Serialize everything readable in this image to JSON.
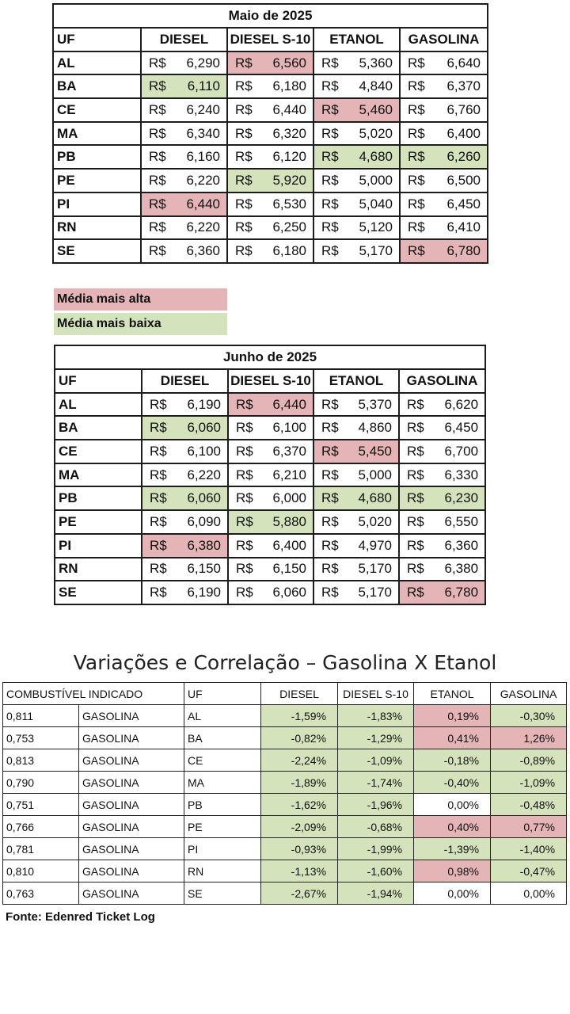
{
  "columns": [
    "UF",
    "DIESEL",
    "DIESEL S-10",
    "ETANOL",
    "GASOLINA"
  ],
  "currency": "R$",
  "may": {
    "title": "Maio de 2025",
    "rows": [
      {
        "uf": "AL",
        "v": [
          "6,290",
          "6,560",
          "5,360",
          "6,640"
        ],
        "m": [
          "",
          "hi",
          "",
          ""
        ]
      },
      {
        "uf": "BA",
        "v": [
          "6,110",
          "6,180",
          "4,840",
          "6,370"
        ],
        "m": [
          "lo",
          "",
          "",
          ""
        ]
      },
      {
        "uf": "CE",
        "v": [
          "6,240",
          "6,440",
          "5,460",
          "6,760"
        ],
        "m": [
          "",
          "",
          "hi",
          ""
        ]
      },
      {
        "uf": "MA",
        "v": [
          "6,340",
          "6,320",
          "5,020",
          "6,400"
        ],
        "m": [
          "",
          "",
          "",
          ""
        ]
      },
      {
        "uf": "PB",
        "v": [
          "6,160",
          "6,120",
          "4,680",
          "6,260"
        ],
        "m": [
          "",
          "",
          "lo",
          "lo"
        ]
      },
      {
        "uf": "PE",
        "v": [
          "6,220",
          "5,920",
          "5,000",
          "6,500"
        ],
        "m": [
          "",
          "lo",
          "",
          ""
        ]
      },
      {
        "uf": "PI",
        "v": [
          "6,440",
          "6,530",
          "5,040",
          "6,450"
        ],
        "m": [
          "hi",
          "",
          "",
          ""
        ]
      },
      {
        "uf": "RN",
        "v": [
          "6,220",
          "6,250",
          "5,120",
          "6,410"
        ],
        "m": [
          "",
          "",
          "",
          ""
        ]
      },
      {
        "uf": "SE",
        "v": [
          "6,360",
          "6,180",
          "5,170",
          "6,780"
        ],
        "m": [
          "",
          "",
          "",
          "hi"
        ]
      }
    ]
  },
  "legend": {
    "high": "Média mais alta",
    "low": "Média mais baixa"
  },
  "june": {
    "title": "Junho de 2025",
    "rows": [
      {
        "uf": "AL",
        "v": [
          "6,190",
          "6,440",
          "5,370",
          "6,620"
        ],
        "m": [
          "",
          "hi",
          "",
          ""
        ]
      },
      {
        "uf": "BA",
        "v": [
          "6,060",
          "6,100",
          "4,860",
          "6,450"
        ],
        "m": [
          "lo",
          "",
          "",
          ""
        ]
      },
      {
        "uf": "CE",
        "v": [
          "6,100",
          "6,370",
          "5,450",
          "6,700"
        ],
        "m": [
          "",
          "",
          "hi",
          ""
        ]
      },
      {
        "uf": "MA",
        "v": [
          "6,220",
          "6,210",
          "5,000",
          "6,330"
        ],
        "m": [
          "",
          "",
          "",
          ""
        ]
      },
      {
        "uf": "PB",
        "v": [
          "6,060",
          "6,000",
          "4,680",
          "6,230"
        ],
        "m": [
          "lo",
          "",
          "lo",
          "lo"
        ]
      },
      {
        "uf": "PE",
        "v": [
          "6,090",
          "5,880",
          "5,020",
          "6,550"
        ],
        "m": [
          "",
          "lo",
          "",
          ""
        ]
      },
      {
        "uf": "PI",
        "v": [
          "6,380",
          "6,400",
          "4,970",
          "6,360"
        ],
        "m": [
          "hi",
          "",
          "",
          ""
        ]
      },
      {
        "uf": "RN",
        "v": [
          "6,150",
          "6,150",
          "5,170",
          "6,380"
        ],
        "m": [
          "",
          "",
          "",
          ""
        ]
      },
      {
        "uf": "SE",
        "v": [
          "6,190",
          "6,060",
          "5,170",
          "6,780"
        ],
        "m": [
          "",
          "",
          "",
          "hi"
        ]
      }
    ]
  },
  "variations": {
    "title": "Variações e Correlação – Gasolina X Etanol",
    "headers": [
      "COMBUSTÍVEL INDICADO",
      "UF",
      "DIESEL",
      "DIESEL S-10",
      "ETANOL",
      "GASOLINA"
    ],
    "rows": [
      {
        "ratio": "0,811",
        "fuel": "GASOLINA",
        "uf": "AL",
        "v": [
          "-1,59%",
          "-1,83%",
          "0,19%",
          "-0,30%"
        ],
        "m": [
          "lo",
          "lo",
          "hi",
          "lo"
        ]
      },
      {
        "ratio": "0,753",
        "fuel": "GASOLINA",
        "uf": "BA",
        "v": [
          "-0,82%",
          "-1,29%",
          "0,41%",
          "1,26%"
        ],
        "m": [
          "lo",
          "lo",
          "hi",
          "hi"
        ]
      },
      {
        "ratio": "0,813",
        "fuel": "GASOLINA",
        "uf": "CE",
        "v": [
          "-2,24%",
          "-1,09%",
          "-0,18%",
          "-0,89%"
        ],
        "m": [
          "lo",
          "lo",
          "lo",
          "lo"
        ]
      },
      {
        "ratio": "0,790",
        "fuel": "GASOLINA",
        "uf": "MA",
        "v": [
          "-1,89%",
          "-1,74%",
          "-0,40%",
          "-1,09%"
        ],
        "m": [
          "lo",
          "lo",
          "lo",
          "lo"
        ]
      },
      {
        "ratio": "0,751",
        "fuel": "GASOLINA",
        "uf": "PB",
        "v": [
          "-1,62%",
          "-1,96%",
          "0,00%",
          "-0,48%"
        ],
        "m": [
          "lo",
          "lo",
          "",
          "lo"
        ]
      },
      {
        "ratio": "0,766",
        "fuel": "GASOLINA",
        "uf": "PE",
        "v": [
          "-2,09%",
          "-0,68%",
          "0,40%",
          "0,77%"
        ],
        "m": [
          "lo",
          "lo",
          "hi",
          "hi"
        ]
      },
      {
        "ratio": "0,781",
        "fuel": "GASOLINA",
        "uf": "PI",
        "v": [
          "-0,93%",
          "-1,99%",
          "-1,39%",
          "-1,40%"
        ],
        "m": [
          "lo",
          "lo",
          "lo",
          "lo"
        ]
      },
      {
        "ratio": "0,810",
        "fuel": "GASOLINA",
        "uf": "RN",
        "v": [
          "-1,13%",
          "-1,60%",
          "0,98%",
          "-0,47%"
        ],
        "m": [
          "lo",
          "lo",
          "hi",
          "lo"
        ]
      },
      {
        "ratio": "0,763",
        "fuel": "GASOLINA",
        "uf": "SE",
        "v": [
          "-2,67%",
          "-1,94%",
          "0,00%",
          "0,00%"
        ],
        "m": [
          "lo",
          "lo",
          "",
          ""
        ]
      }
    ]
  },
  "source": "Fonte: Edenred Ticket Log",
  "colors": {
    "high": "#e4b4b6",
    "low": "#d5e3bd"
  }
}
